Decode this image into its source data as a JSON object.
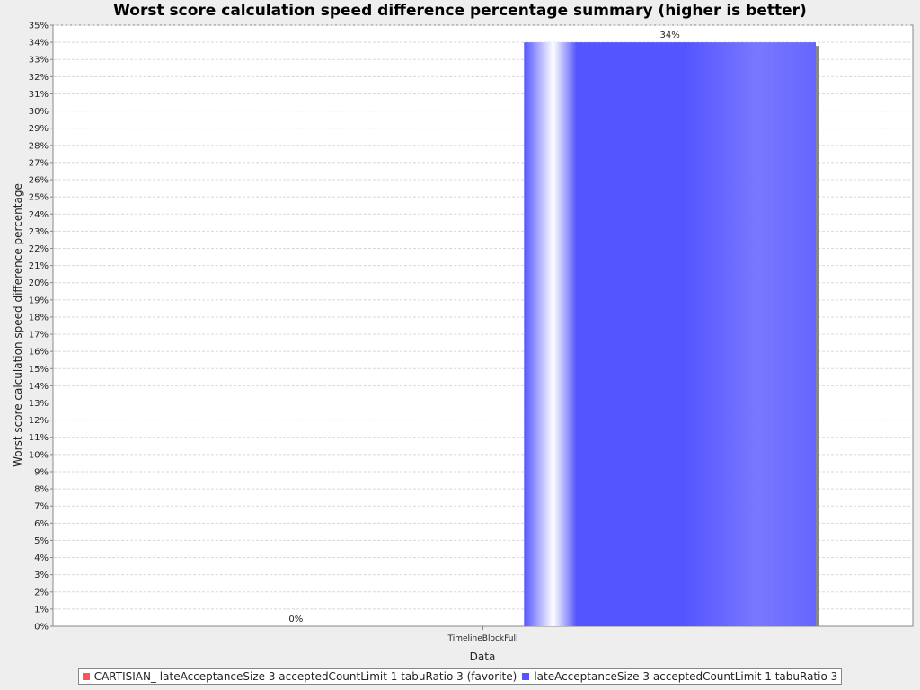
{
  "chart_data": {
    "type": "bar",
    "title": "Worst score calculation speed difference percentage summary (higher is better)",
    "xlabel": "Data",
    "ylabel": "Worst score calculation speed difference percentage",
    "categories": [
      "TimelineBlockFull"
    ],
    "series": [
      {
        "name": "CARTISIAN_ lateAcceptanceSize 3 acceptedCountLimit 1 tabuRatio 3 (favorite)",
        "values": [
          0
        ],
        "value_labels": [
          "0%"
        ],
        "color": "#ff5555"
      },
      {
        "name": "lateAcceptanceSize 3 acceptedCountLimit 1 tabuRatio 3",
        "values": [
          34
        ],
        "value_labels": [
          "34%"
        ],
        "color": "#5555ff"
      }
    ],
    "ylim": [
      0,
      35
    ],
    "y_tick_step": 1,
    "y_tick_suffix": "%",
    "grid": true,
    "legend_position": "bottom"
  }
}
